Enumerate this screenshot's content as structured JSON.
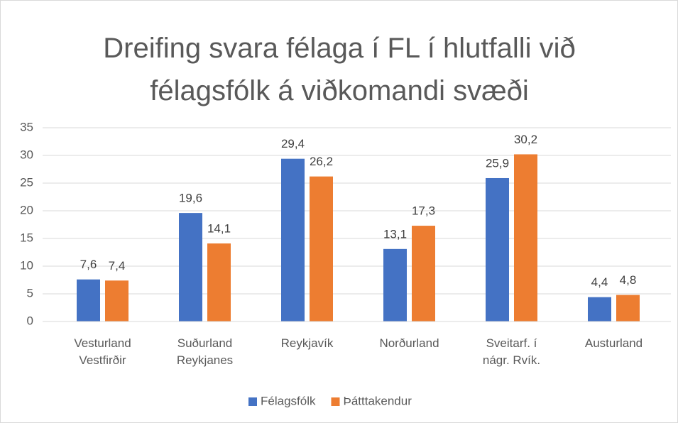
{
  "chart_data": {
    "type": "bar",
    "title": "Dreifing svara félaga í FL í hlutfalli við\nfélagsfólk á viðkomandi svæði",
    "categories": [
      "Vesturland\nVestfirðir",
      "Suðurland\nReykjanes",
      "Reykjavík",
      "Norðurland",
      "Sveitarf. í\nnágr. Rvík.",
      "Austurland"
    ],
    "series": [
      {
        "name": "Félagsfólk",
        "color": "#4472c4",
        "values": [
          7.6,
          19.6,
          29.4,
          13.1,
          25.9,
          4.4
        ],
        "value_labels": [
          "7,6",
          "19,6",
          "29,4",
          "13,1",
          "25,9",
          "4,4"
        ]
      },
      {
        "name": "Þátttakendur",
        "color": "#ed7d31",
        "values": [
          7.4,
          14.1,
          26.2,
          17.3,
          30.2,
          4.8
        ],
        "value_labels": [
          "7,4",
          "14,1",
          "26,2",
          "17,3",
          "30,2",
          "4,8"
        ]
      }
    ],
    "ylim": [
      0,
      35
    ],
    "yticks": [
      0,
      5,
      10,
      15,
      20,
      25,
      30,
      35
    ],
    "grid": true,
    "legend": "bottom"
  }
}
